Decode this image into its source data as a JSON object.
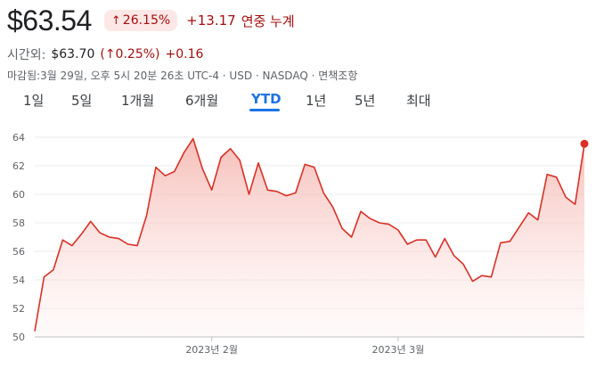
{
  "header": {
    "price": "$63.54",
    "change_pct": "26.15%",
    "change_abs": "+13.17",
    "period_label": "연중 누계"
  },
  "after_hours": {
    "label": "시간외:",
    "price": "$63.70",
    "pct": "(↑0.25%)",
    "abs": "+0.16"
  },
  "meta": {
    "text": "마감됨:3월 29일, 오후 5시 20분 26초 UTC-4 · USD · NASDAQ · 면책조항"
  },
  "tabs": [
    {
      "label": "1일"
    },
    {
      "label": "5일"
    },
    {
      "label": "1개월"
    },
    {
      "label": "6개월"
    },
    {
      "label": "YTD",
      "active": true
    },
    {
      "label": "1년"
    },
    {
      "label": "5년"
    },
    {
      "label": "최대"
    }
  ],
  "colors": {
    "line": "#d93025",
    "fill_top": "#f5b7b1",
    "negative_text": "#a50e0e",
    "accent": "#1a73e8"
  },
  "chart_data": {
    "type": "area",
    "x": [
      "1/3",
      "1/4",
      "1/5",
      "1/6",
      "1/9",
      "1/10",
      "1/11",
      "1/12",
      "1/13",
      "1/17",
      "1/18",
      "1/19",
      "1/20",
      "1/23",
      "1/24",
      "1/25",
      "1/26",
      "1/27",
      "1/30",
      "1/31",
      "2/1",
      "2/2",
      "2/3",
      "2/6",
      "2/7",
      "2/8",
      "2/9",
      "2/10",
      "2/13",
      "2/14",
      "2/15",
      "2/16",
      "2/17",
      "2/21",
      "2/22",
      "2/23",
      "2/24",
      "2/27",
      "2/28",
      "3/1",
      "3/2",
      "3/3",
      "3/6",
      "3/7",
      "3/8",
      "3/9",
      "3/10",
      "3/13",
      "3/14",
      "3/15",
      "3/16",
      "3/17",
      "3/20",
      "3/21",
      "3/22",
      "3/23",
      "3/24",
      "3/27",
      "3/28",
      "3/29"
    ],
    "values": [
      50.4,
      54.2,
      54.7,
      56.8,
      56.4,
      57.2,
      58.1,
      57.3,
      57.0,
      56.9,
      56.5,
      56.4,
      58.5,
      61.9,
      61.3,
      61.6,
      62.9,
      63.9,
      61.8,
      60.3,
      62.6,
      63.2,
      62.4,
      60.0,
      62.2,
      60.3,
      60.2,
      59.9,
      60.1,
      62.1,
      61.9,
      60.1,
      59.1,
      57.6,
      57.0,
      58.8,
      58.3,
      58.0,
      57.9,
      57.5,
      56.5,
      56.8,
      56.8,
      55.6,
      56.9,
      55.7,
      55.1,
      53.9,
      54.3,
      54.2,
      56.6,
      56.7,
      57.7,
      58.7,
      58.2,
      61.4,
      61.2,
      59.8,
      59.3,
      63.54
    ],
    "x_tick_labels": [
      {
        "label": "2023년 2월",
        "at": "1/31"
      },
      {
        "label": "2023년 3월",
        "at": "3/1"
      }
    ],
    "y_ticks": [
      50,
      52,
      54,
      56,
      58,
      60,
      62,
      64
    ],
    "ylim": [
      50,
      64
    ],
    "grid": true
  }
}
